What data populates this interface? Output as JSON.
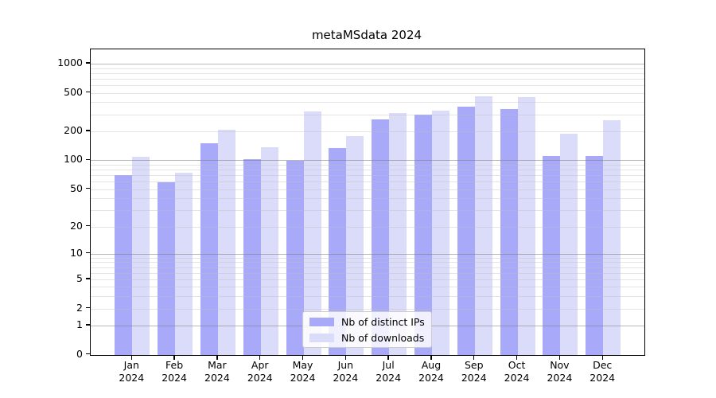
{
  "title": "metaMSdata 2024",
  "chart_data": {
    "type": "bar",
    "title": "metaMSdata 2024",
    "categories": [
      "Jan",
      "Feb",
      "Mar",
      "Apr",
      "May",
      "Jun",
      "Jul",
      "Aug",
      "Sep",
      "Oct",
      "Nov",
      "Dec"
    ],
    "category_year": "2024",
    "series": [
      {
        "name": "Nb of distinct IPs",
        "color": "#a9a9fa",
        "values": [
          70,
          59,
          152,
          103,
          100,
          135,
          265,
          300,
          360,
          340,
          112,
          112
        ]
      },
      {
        "name": "Nb of downloads",
        "color": "#dbdbfa",
        "values": [
          110,
          75,
          210,
          137,
          320,
          178,
          310,
          330,
          465,
          455,
          190,
          260
        ]
      }
    ],
    "y_ticks": [
      0,
      1,
      2,
      5,
      10,
      20,
      50,
      100,
      200,
      500,
      1000
    ],
    "y_major_gridlines": [
      1,
      10,
      100,
      1000
    ],
    "scale": "log1p",
    "ylim": [
      0,
      1400
    ],
    "grid": "on",
    "legend_position": "bottom-center",
    "colors": {
      "distinct_ips": "#a9a9fa",
      "downloads": "#dbdbfa",
      "grid_major": "#7d7d7d",
      "grid_minor": "#bebebe",
      "frame": "#000000"
    }
  }
}
